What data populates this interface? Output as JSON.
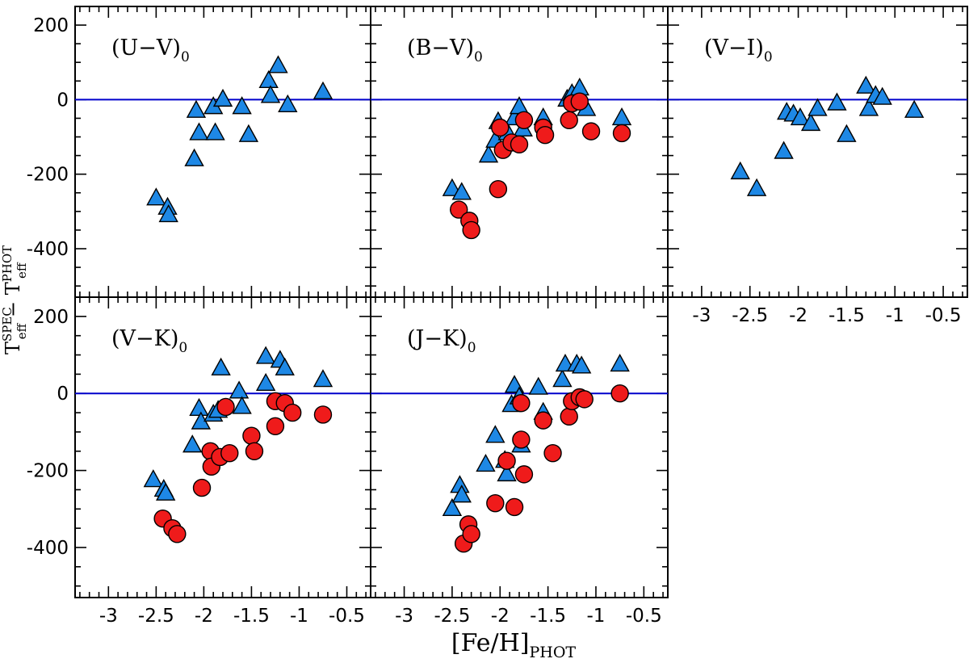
{
  "chart_data": {
    "type": "scatter",
    "xlabel": "[Fe/H]",
    "xlabel_sub": "PHOT",
    "ylabel": "T",
    "ylabel_sup1": "SPEC",
    "ylabel_sub1": "eff",
    "ylabel_mid": " − T",
    "ylabel_sup2": "PHOT",
    "ylabel_sub2": "eff",
    "xlim": [
      -3.35,
      -0.25
    ],
    "ylim": [
      -530,
      250
    ],
    "xticks": [
      "-3",
      "-2.5",
      "-2",
      "-1.5",
      "-1",
      "-0.5"
    ],
    "yticks": [
      "200",
      "0",
      "-200",
      "-400"
    ],
    "reference_line": 0,
    "colors": {
      "triangle": "#1e88e5",
      "circle": "#ef1b1b",
      "zero_line": "#0000cc"
    },
    "panels": [
      {
        "title": "(U−V)",
        "title_sub": "0",
        "triangles": [
          [
            -2.5,
            -265
          ],
          [
            -2.38,
            -290
          ],
          [
            -2.37,
            -310
          ],
          [
            -2.1,
            -160
          ],
          [
            -2.08,
            -30
          ],
          [
            -2.05,
            -90
          ],
          [
            -1.9,
            -20
          ],
          [
            -1.88,
            -90
          ],
          [
            -1.8,
            0
          ],
          [
            -1.6,
            -20
          ],
          [
            -1.53,
            -95
          ],
          [
            -1.32,
            50
          ],
          [
            -1.3,
            10
          ],
          [
            -1.22,
            90
          ],
          [
            -1.12,
            -15
          ],
          [
            -0.75,
            20
          ]
        ],
        "circles": []
      },
      {
        "title": "(B−V)",
        "title_sub": "0",
        "triangles": [
          [
            -2.5,
            -240
          ],
          [
            -2.4,
            -250
          ],
          [
            -2.12,
            -150
          ],
          [
            -2.05,
            -110
          ],
          [
            -2.02,
            -60
          ],
          [
            -1.92,
            -90
          ],
          [
            -1.85,
            -50
          ],
          [
            -1.8,
            -20
          ],
          [
            -1.76,
            -80
          ],
          [
            -1.55,
            -50
          ],
          [
            -1.3,
            0
          ],
          [
            -1.25,
            15
          ],
          [
            -1.17,
            30
          ],
          [
            -1.1,
            -25
          ],
          [
            -0.73,
            -50
          ]
        ],
        "circles": [
          [
            -2.43,
            -295
          ],
          [
            -2.32,
            -325
          ],
          [
            -2.3,
            -350
          ],
          [
            -2.02,
            -240
          ],
          [
            -2.0,
            -75
          ],
          [
            -1.97,
            -135
          ],
          [
            -1.88,
            -115
          ],
          [
            -1.8,
            -120
          ],
          [
            -1.75,
            -55
          ],
          [
            -1.55,
            -75
          ],
          [
            -1.53,
            -95
          ],
          [
            -1.28,
            -55
          ],
          [
            -1.25,
            -10
          ],
          [
            -1.17,
            -5
          ],
          [
            -1.05,
            -85
          ],
          [
            -0.73,
            -90
          ]
        ]
      },
      {
        "title": "(V−I)",
        "title_sub": "0",
        "triangles": [
          [
            -2.6,
            -195
          ],
          [
            -2.43,
            -240
          ],
          [
            -2.15,
            -140
          ],
          [
            -2.12,
            -35
          ],
          [
            -2.05,
            -40
          ],
          [
            -1.98,
            -50
          ],
          [
            -1.87,
            -65
          ],
          [
            -1.8,
            -25
          ],
          [
            -1.6,
            -10
          ],
          [
            -1.5,
            -95
          ],
          [
            -1.3,
            35
          ],
          [
            -1.27,
            -25
          ],
          [
            -1.2,
            10
          ],
          [
            -1.13,
            5
          ],
          [
            -0.8,
            -30
          ]
        ],
        "circles": []
      },
      {
        "title": "(V−K)",
        "title_sub": "0",
        "triangles": [
          [
            -2.53,
            -225
          ],
          [
            -2.42,
            -250
          ],
          [
            -2.4,
            -260
          ],
          [
            -2.12,
            -135
          ],
          [
            -2.05,
            -40
          ],
          [
            -2.03,
            -75
          ],
          [
            -1.9,
            -55
          ],
          [
            -1.85,
            -45
          ],
          [
            -1.82,
            65
          ],
          [
            -1.63,
            5
          ],
          [
            -1.6,
            -35
          ],
          [
            -1.35,
            95
          ],
          [
            -1.35,
            25
          ],
          [
            -1.2,
            85
          ],
          [
            -1.15,
            65
          ],
          [
            -0.75,
            35
          ]
        ],
        "circles": [
          [
            -2.43,
            -325
          ],
          [
            -2.33,
            -350
          ],
          [
            -2.28,
            -365
          ],
          [
            -2.02,
            -245
          ],
          [
            -1.93,
            -150
          ],
          [
            -1.92,
            -190
          ],
          [
            -1.83,
            -165
          ],
          [
            -1.77,
            -35
          ],
          [
            -1.73,
            -155
          ],
          [
            -1.5,
            -110
          ],
          [
            -1.47,
            -150
          ],
          [
            -1.25,
            -85
          ],
          [
            -1.25,
            -20
          ],
          [
            -1.15,
            -25
          ],
          [
            -1.07,
            -50
          ],
          [
            -0.75,
            -55
          ]
        ]
      },
      {
        "title": "(J−K)",
        "title_sub": "0",
        "triangles": [
          [
            -2.5,
            -300
          ],
          [
            -2.42,
            -240
          ],
          [
            -2.4,
            -265
          ],
          [
            -2.15,
            -185
          ],
          [
            -2.05,
            -110
          ],
          [
            -1.95,
            -175
          ],
          [
            -1.93,
            -210
          ],
          [
            -1.88,
            -30
          ],
          [
            -1.85,
            20
          ],
          [
            -1.8,
            -10
          ],
          [
            -1.78,
            -135
          ],
          [
            -1.6,
            15
          ],
          [
            -1.55,
            -50
          ],
          [
            -1.35,
            35
          ],
          [
            -1.32,
            75
          ],
          [
            -1.2,
            75
          ],
          [
            -1.15,
            70
          ],
          [
            -0.75,
            75
          ]
        ],
        "circles": [
          [
            -2.38,
            -390
          ],
          [
            -2.33,
            -340
          ],
          [
            -2.3,
            -365
          ],
          [
            -2.05,
            -285
          ],
          [
            -1.93,
            -175
          ],
          [
            -1.85,
            -295
          ],
          [
            -1.78,
            -120
          ],
          [
            -1.78,
            -25
          ],
          [
            -1.75,
            -210
          ],
          [
            -1.55,
            -70
          ],
          [
            -1.45,
            -155
          ],
          [
            -1.28,
            -60
          ],
          [
            -1.25,
            -20
          ],
          [
            -1.17,
            -10
          ],
          [
            -1.12,
            -15
          ],
          [
            -0.75,
            0
          ]
        ]
      }
    ]
  }
}
